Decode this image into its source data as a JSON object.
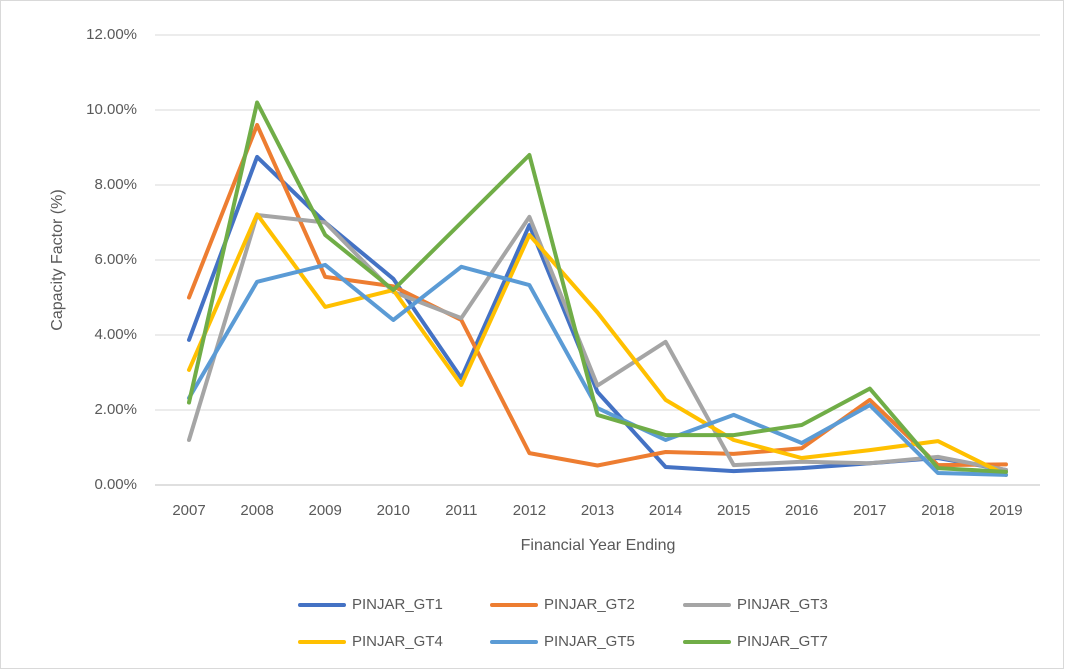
{
  "chart_data": {
    "type": "line",
    "x_label": "Financial Year Ending",
    "y_label": "Capacity Factor (%)",
    "categories": [
      "2007",
      "2008",
      "2009",
      "2010",
      "2011",
      "2012",
      "2013",
      "2014",
      "2015",
      "2016",
      "2017",
      "2018",
      "2019"
    ],
    "series": [
      {
        "name": "PINJAR_GT1",
        "color": "#4472c4",
        "values": [
          3.87,
          8.75,
          7.0,
          5.5,
          2.85,
          6.93,
          2.48,
          0.48,
          0.37,
          0.45,
          0.58,
          0.72,
          0.4
        ]
      },
      {
        "name": "PINJAR_GT2",
        "color": "#ed7d31",
        "values": [
          5.0,
          9.6,
          5.55,
          5.3,
          4.4,
          0.85,
          0.52,
          0.88,
          0.83,
          0.98,
          2.27,
          0.53,
          0.55
        ]
      },
      {
        "name": "PINJAR_GT3",
        "color": "#a5a5a5",
        "values": [
          1.2,
          7.2,
          7.0,
          5.15,
          4.45,
          7.15,
          2.65,
          3.82,
          0.53,
          0.62,
          0.58,
          0.75,
          0.4
        ]
      },
      {
        "name": "PINJAR_GT4",
        "color": "#ffc000",
        "values": [
          3.07,
          7.22,
          4.75,
          5.2,
          2.67,
          6.67,
          4.6,
          2.27,
          1.2,
          0.72,
          0.93,
          1.17,
          0.27
        ]
      },
      {
        "name": "PINJAR_GT5",
        "color": "#5b9bd5",
        "values": [
          2.32,
          5.42,
          5.87,
          4.4,
          5.82,
          5.33,
          2.05,
          1.2,
          1.87,
          1.12,
          2.13,
          0.32,
          0.27
        ]
      },
      {
        "name": "PINJAR_GT7",
        "color": "#70ad47",
        "values": [
          2.2,
          10.2,
          6.67,
          5.2,
          7.0,
          8.8,
          1.87,
          1.33,
          1.33,
          1.6,
          2.57,
          0.45,
          0.35
        ]
      }
    ],
    "ylim": [
      0,
      12
    ],
    "yticks": [
      {
        "value": 0,
        "label": "0.00%"
      },
      {
        "value": 2,
        "label": "2.00%"
      },
      {
        "value": 4,
        "label": "4.00%"
      },
      {
        "value": 6,
        "label": "6.00%"
      },
      {
        "value": 8,
        "label": "8.00%"
      },
      {
        "value": 10,
        "label": "10.00%"
      },
      {
        "value": 12,
        "label": "12.00%"
      }
    ],
    "grid": true,
    "legend": "bottom"
  }
}
